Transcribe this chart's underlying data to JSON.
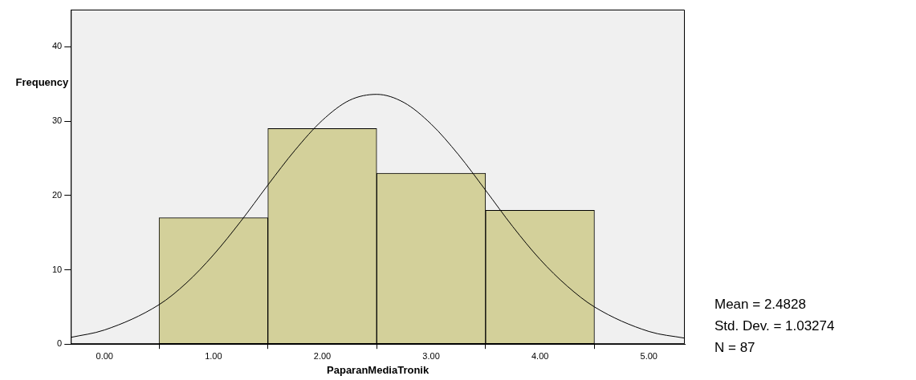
{
  "chart_data": {
    "type": "histogram",
    "xlabel": "PaparanMediaTronik",
    "ylabel": "Frequency",
    "bins": [
      0.5,
      1.5,
      2.5,
      3.5,
      4.5
    ],
    "values": [
      17,
      29,
      23,
      18
    ],
    "color": "#d3d09a",
    "series": [
      {
        "type": "line",
        "color": "#000000",
        "x": [
          -0.31,
          0,
          0.5,
          0.75,
          1,
          1.25,
          1.5,
          1.75,
          2,
          2.25,
          2.5,
          2.75,
          3,
          3.25,
          3.5,
          3.75,
          4,
          4.25,
          4.5,
          5,
          5.33
        ],
        "values": [
          0.9,
          1.9,
          5.3,
          8.2,
          12,
          16.5,
          21.4,
          26.1,
          30.1,
          32.8,
          33.6,
          32.5,
          29.6,
          25.5,
          20.7,
          15.8,
          11.4,
          7.8,
          5,
          1.7,
          0.8
        ]
      }
    ],
    "xlim": [
      -0.31,
      5.33
    ],
    "xticks": [
      {
        "value": 0,
        "label": "0.00"
      },
      {
        "value": 1,
        "label": "1.00"
      },
      {
        "value": 2,
        "label": "2.00"
      },
      {
        "value": 3,
        "label": "3.00"
      },
      {
        "value": 4,
        "label": "4.00"
      },
      {
        "value": 5,
        "label": "5.00"
      }
    ],
    "ylim": [
      0,
      45
    ],
    "yticks": [
      0,
      10,
      20,
      30,
      40
    ],
    "grid": false,
    "legend": false,
    "annotations": [
      "Mean = 2.4828",
      "Std. Dev. = 1.03274",
      "N = 87"
    ]
  }
}
